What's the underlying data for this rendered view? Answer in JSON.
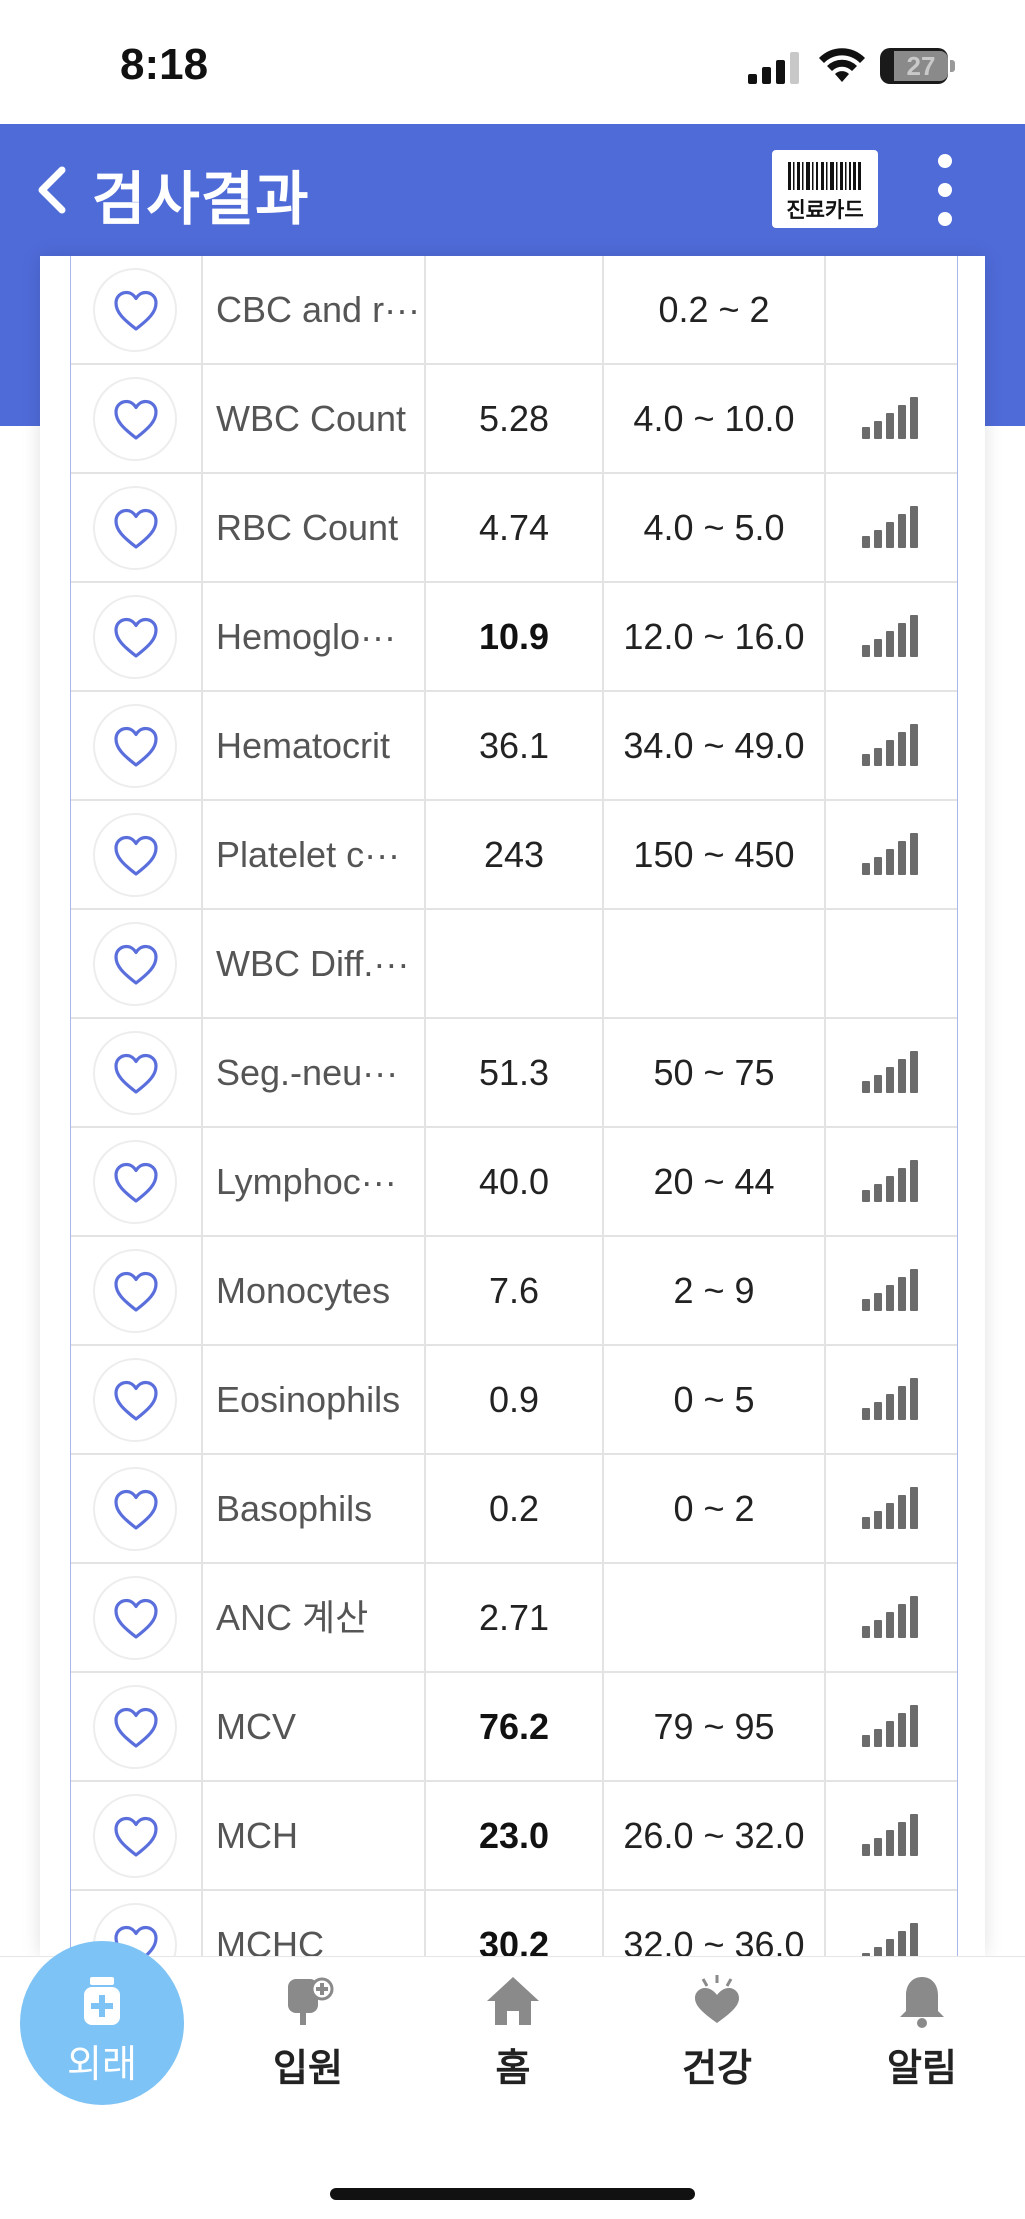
{
  "status_bar": {
    "time": "8:18",
    "battery": "27"
  },
  "header": {
    "title": "검사결과",
    "card_button_label": "진료카드",
    "accent": "#4f6bd8"
  },
  "rows": [
    {
      "name": "CBC and r···",
      "value": "",
      "reference": "0.2 ~ 2",
      "flag": false,
      "chart": false
    },
    {
      "name": "WBC Count",
      "value": "5.28",
      "reference": "4.0 ~ 10.0",
      "flag": false,
      "chart": true
    },
    {
      "name": "RBC Count",
      "value": "4.74",
      "reference": "4.0 ~ 5.0",
      "flag": false,
      "chart": true
    },
    {
      "name": "Hemoglo···",
      "value": "10.9",
      "reference": "12.0 ~ 16.0",
      "flag": true,
      "chart": true
    },
    {
      "name": "Hematocrit",
      "value": "36.1",
      "reference": "34.0 ~ 49.0",
      "flag": false,
      "chart": true
    },
    {
      "name": "Platelet c···",
      "value": "243",
      "reference": "150 ~ 450",
      "flag": false,
      "chart": true
    },
    {
      "name": "WBC Diff.···",
      "value": "",
      "reference": "",
      "flag": false,
      "chart": false
    },
    {
      "name": "Seg.-neu···",
      "value": "51.3",
      "reference": "50 ~ 75",
      "flag": false,
      "chart": true
    },
    {
      "name": "Lymphoc···",
      "value": "40.0",
      "reference": "20 ~ 44",
      "flag": false,
      "chart": true
    },
    {
      "name": "Monocytes",
      "value": "7.6",
      "reference": "2 ~ 9",
      "flag": false,
      "chart": true
    },
    {
      "name": "Eosinophils",
      "value": "0.9",
      "reference": "0 ~ 5",
      "flag": false,
      "chart": true
    },
    {
      "name": "Basophils",
      "value": "0.2",
      "reference": "0 ~ 2",
      "flag": false,
      "chart": true
    },
    {
      "name": "ANC 계산",
      "value": "2.71",
      "reference": "",
      "flag": false,
      "chart": true
    },
    {
      "name": "MCV",
      "value": "76.2",
      "reference": "79 ~ 95",
      "flag": true,
      "chart": true
    },
    {
      "name": "MCH",
      "value": "23.0",
      "reference": "26.0 ~ 32.0",
      "flag": true,
      "chart": true
    },
    {
      "name": "MCHC",
      "value": "30.2",
      "reference": "32.0 ~ 36.0",
      "flag": true,
      "chart": true
    }
  ],
  "bottom_nav": [
    {
      "label": "외래",
      "icon": "medicine-bottle-icon",
      "active": true
    },
    {
      "label": "입원",
      "icon": "iv-bag-icon",
      "active": false
    },
    {
      "label": "홈",
      "icon": "home-icon",
      "active": false
    },
    {
      "label": "건강",
      "icon": "heart-hand-icon",
      "active": false
    },
    {
      "label": "알림",
      "icon": "bell-icon",
      "active": false
    }
  ]
}
